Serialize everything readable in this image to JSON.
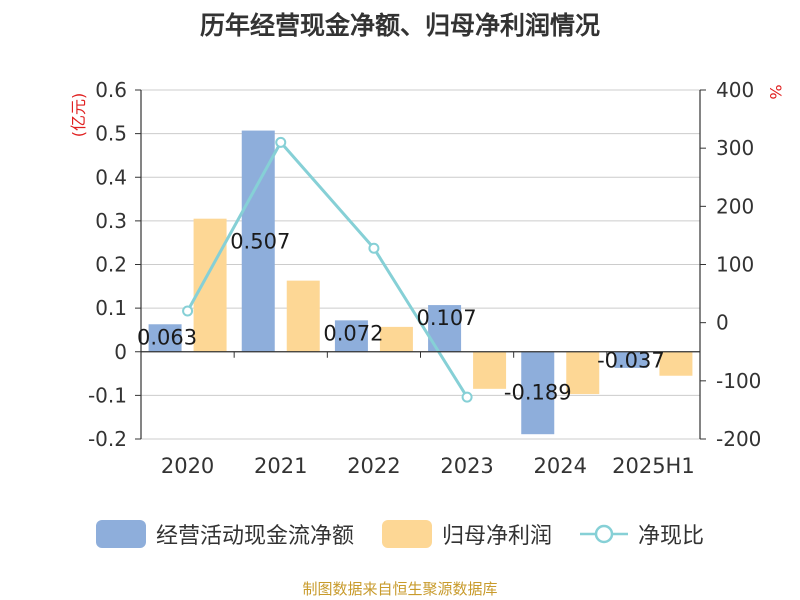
{
  "chart_data": {
    "type": "bar",
    "title": "历年经营现金净额、归母净利润情况",
    "categories": [
      "2020",
      "2021",
      "2022",
      "2023",
      "2024",
      "2025H1"
    ],
    "y_left": {
      "unit": "(亿元)",
      "range": [
        -0.2,
        0.6
      ],
      "ticks": [
        "-0.2",
        "-0.1",
        "0",
        "0.1",
        "0.2",
        "0.3",
        "0.4",
        "0.5",
        "0.6"
      ]
    },
    "y_right": {
      "unit": "%",
      "range": [
        -200,
        400
      ],
      "ticks": [
        "-200",
        "-100",
        "0",
        "100",
        "200",
        "300",
        "400"
      ]
    },
    "series": [
      {
        "name": "经营活动现金流净额",
        "kind": "bar",
        "axis": "left",
        "color": "#8eaedb",
        "values": [
          0.063,
          0.507,
          0.072,
          0.107,
          -0.189,
          -0.037
        ],
        "labels": [
          "0.063",
          "0.507",
          "0.072",
          "0.107",
          "-0.189",
          "-0.037"
        ]
      },
      {
        "name": "归母净利润",
        "kind": "bar",
        "axis": "left",
        "color": "#fdd795",
        "values": [
          0.305,
          0.163,
          0.057,
          -0.085,
          -0.097,
          -0.055
        ]
      },
      {
        "name": "净现比",
        "kind": "line",
        "axis": "right",
        "color": "#86d0d6",
        "values": [
          20,
          310,
          128,
          -128,
          null,
          null
        ]
      }
    ],
    "grid": true,
    "legend_position": "bottom"
  },
  "source": "制图数据来自恒生聚源数据库"
}
